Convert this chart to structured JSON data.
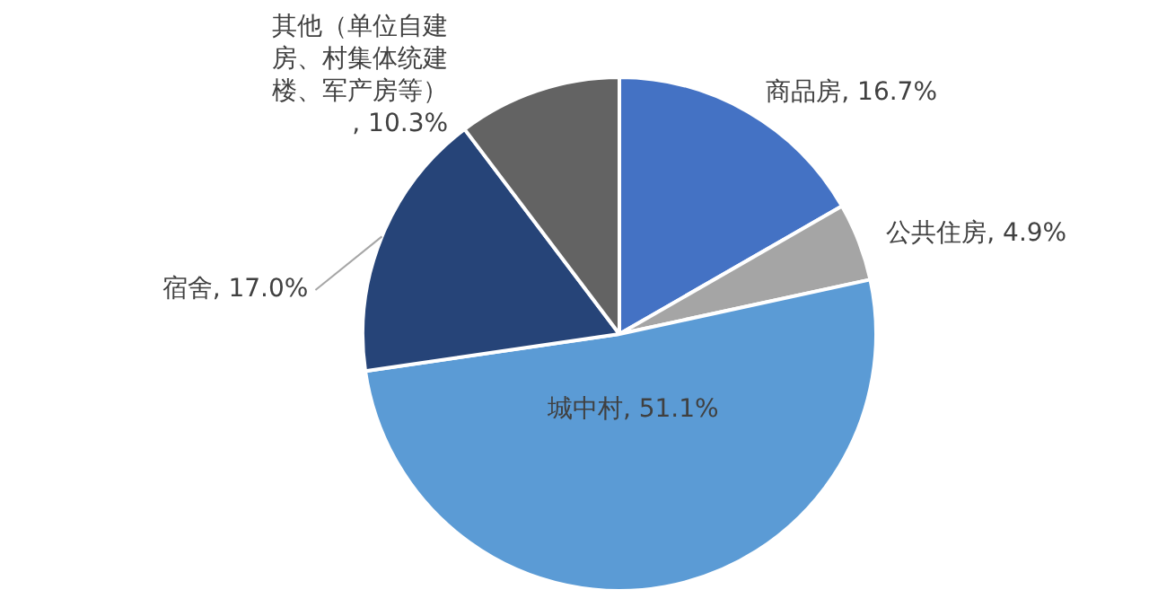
{
  "chart_data": {
    "type": "pie",
    "categories": [
      "商品房",
      "公共住房",
      "城中村",
      "宿舍",
      "其他（单位自建房、村集体统建楼、军产房等）"
    ],
    "values": [
      16.7,
      4.9,
      51.1,
      17.0,
      10.3
    ],
    "value_labels": [
      ", 16.7%",
      ", 4.9%",
      ", 51.1%",
      ", 17.0%",
      ", 10.3%"
    ],
    "colors": [
      "#4472c4",
      "#a5a5a5",
      "#5b9bd5",
      "#264478",
      "#636363"
    ],
    "legend": false
  }
}
